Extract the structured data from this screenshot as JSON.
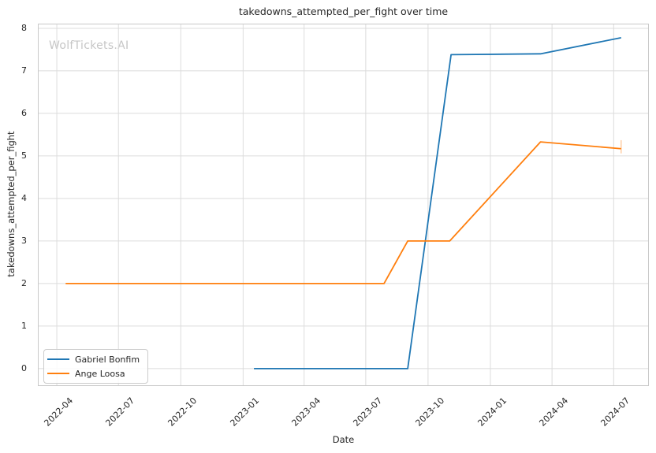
{
  "figure": {
    "title": "takedowns_attempted_per_fight over time",
    "watermark": "WolfTickets.AI",
    "xlabel": "Date",
    "ylabel": "takedowns_attempted_per_fight"
  },
  "legend": {
    "position": "lower left",
    "items": [
      {
        "label": "Gabriel Bonfim",
        "color": "#1f77b4"
      },
      {
        "label": "Ange Loosa",
        "color": "#ff7f0e"
      }
    ]
  },
  "colors": {
    "series_blue": "#1f77b4",
    "series_orange": "#ff7f0e",
    "gridline": "#dcdcdc",
    "spine": "#c9c9c9",
    "text": "#262626",
    "watermark": "#c6c6c6",
    "background": "#ffffff"
  },
  "chart_data": {
    "type": "line",
    "title": "takedowns_attempted_per_fight over time",
    "xlabel": "Date",
    "ylabel": "takedowns_attempted_per_fight",
    "grid": true,
    "legend_position": "lower left",
    "x_domain": [
      "2022-03-04",
      "2024-08-22"
    ],
    "y_domain": [
      -0.41,
      8.11
    ],
    "x_ticks": [
      "2022-04",
      "2022-07",
      "2022-10",
      "2023-01",
      "2023-04",
      "2023-07",
      "2023-10",
      "2024-01",
      "2024-04",
      "2024-07"
    ],
    "y_ticks": [
      0,
      1,
      2,
      3,
      4,
      5,
      6,
      7,
      8
    ],
    "series": [
      {
        "name": "Gabriel Bonfim",
        "color": "#1f77b4",
        "points": [
          [
            "2023-01-17",
            0.0
          ],
          [
            "2023-09-01",
            0.0
          ],
          [
            "2023-11-04",
            7.38
          ],
          [
            "2024-03-15",
            7.4
          ],
          [
            "2024-07-12",
            7.78
          ]
        ]
      },
      {
        "name": "Ange Loosa",
        "color": "#ff7f0e",
        "points": [
          [
            "2022-04-14",
            2.0
          ],
          [
            "2023-07-28",
            2.0
          ],
          [
            "2023-09-01",
            3.0
          ],
          [
            "2023-11-02",
            3.0
          ],
          [
            "2024-03-15",
            5.33
          ],
          [
            "2024-07-12",
            5.17
          ]
        ],
        "end_cap": {
          "x": "2024-07-12",
          "y_low": 5.06,
          "y_high": 5.37
        }
      }
    ]
  }
}
